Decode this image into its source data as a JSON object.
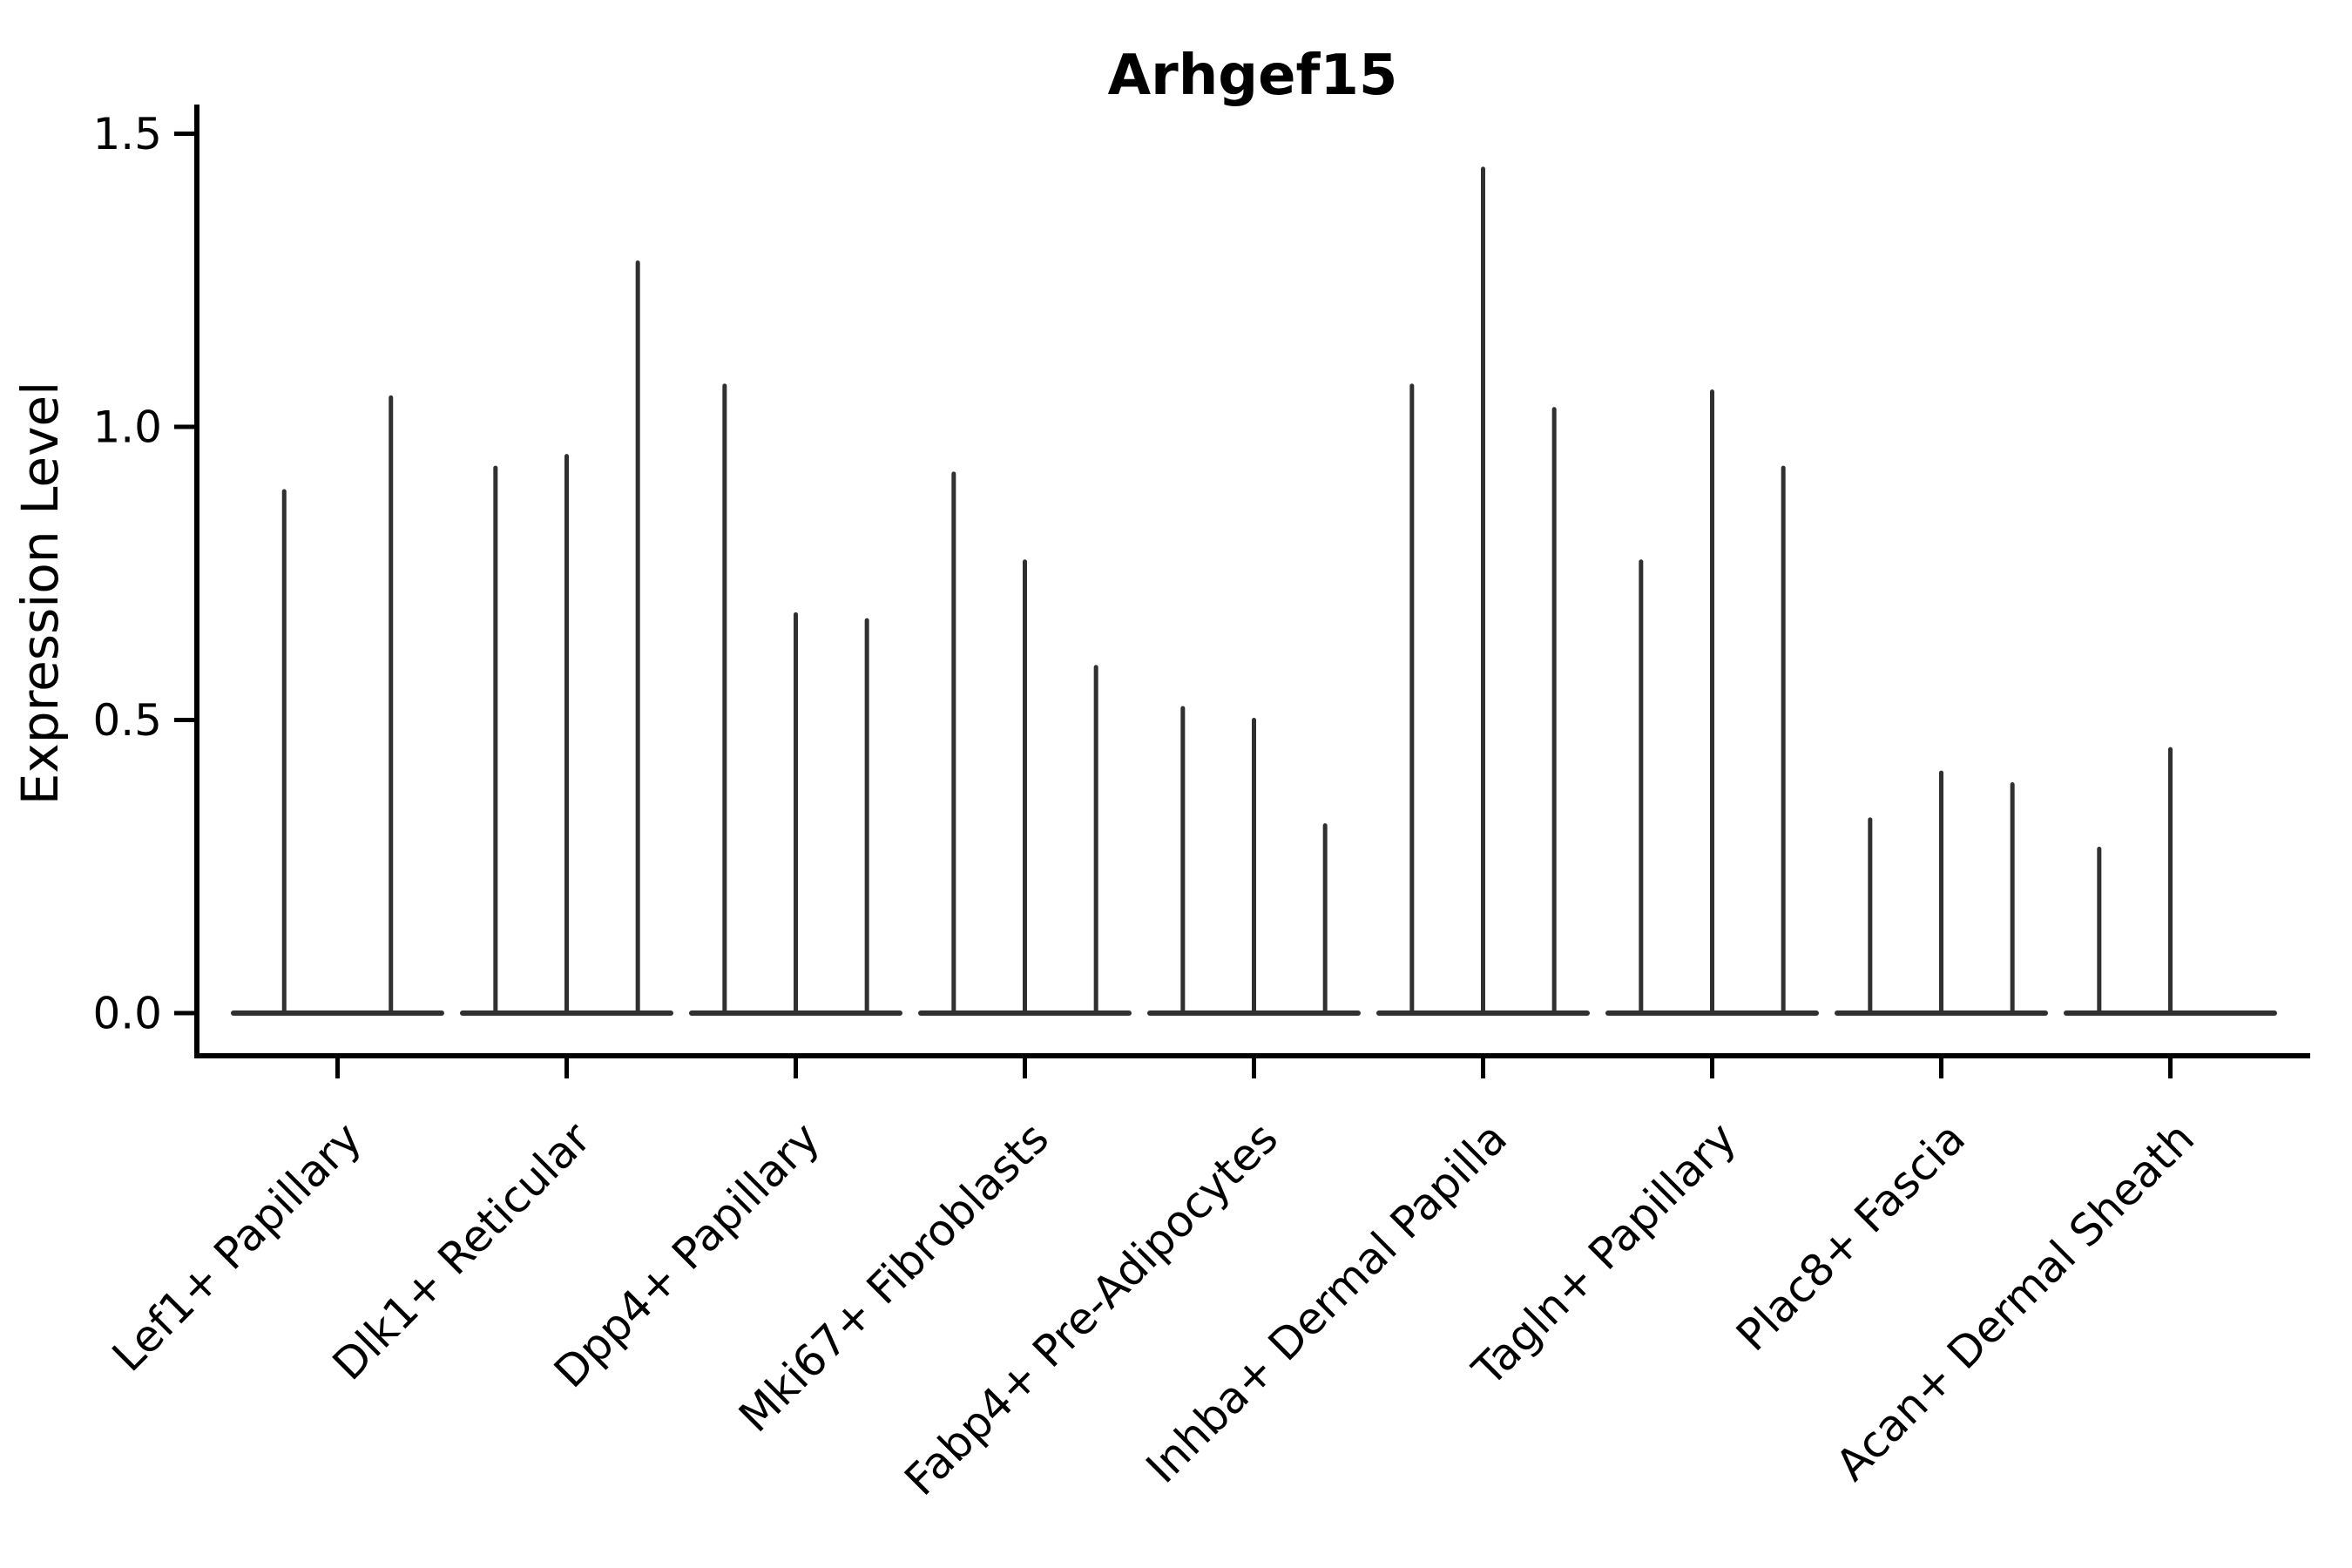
{
  "figure": {
    "background_color": "#ffffff"
  },
  "chart_data": {
    "type": "violin",
    "title": "Arhgef15",
    "xlabel": "",
    "ylabel": "Expression Level",
    "ylim": [
      -0.073,
      1.55
    ],
    "yticks": [
      0.0,
      0.5,
      1.0,
      1.5
    ],
    "ytick_labels": [
      "0.0",
      "0.5",
      "1.0",
      "1.5"
    ],
    "grid": false,
    "legend": null,
    "violin_color": "#303030",
    "spine_color": "#000000",
    "categories": [
      "Lef1+ Papillary",
      "Dlk1+ Reticular",
      "Dpp4+ Papillary",
      "Mki67+ Fibroblasts",
      "Fabp4+ Pre-Adipocytes",
      "Inhba+ Dermal Papilla",
      "Tagln+ Papillary",
      "Plac8+ Fascia",
      "Acan+ Dermal Sheath"
    ],
    "groups": [
      {
        "label": "Lef1+ Papillary",
        "violin_maxima": [
          0.89,
          1.05
        ]
      },
      {
        "label": "Dlk1+ Reticular",
        "violin_maxima": [
          0.93,
          0.95,
          1.28
        ]
      },
      {
        "label": "Dpp4+ Papillary",
        "violin_maxima": [
          1.07,
          0.68,
          0.67
        ]
      },
      {
        "label": "Mki67+ Fibroblasts",
        "violin_maxima": [
          0.92,
          0.77,
          0.59
        ]
      },
      {
        "label": "Fabp4+ Pre-Adipocytes",
        "violin_maxima": [
          0.52,
          0.5,
          0.32
        ]
      },
      {
        "label": "Inhba+ Dermal Papilla",
        "violin_maxima": [
          1.07,
          1.44,
          1.03
        ]
      },
      {
        "label": "Tagln+ Papillary",
        "violin_maxima": [
          0.77,
          1.06,
          0.93
        ]
      },
      {
        "label": "Plac8+ Fascia",
        "violin_maxima": [
          0.33,
          0.41,
          0.39
        ]
      },
      {
        "label": "Acan+ Dermal Sheath",
        "violin_maxima": [
          0.28,
          0.45,
          0.0
        ]
      }
    ],
    "annotation": "Each violin is collapsed to a flat base at 0 with a thin spike to its maximum expression value"
  }
}
